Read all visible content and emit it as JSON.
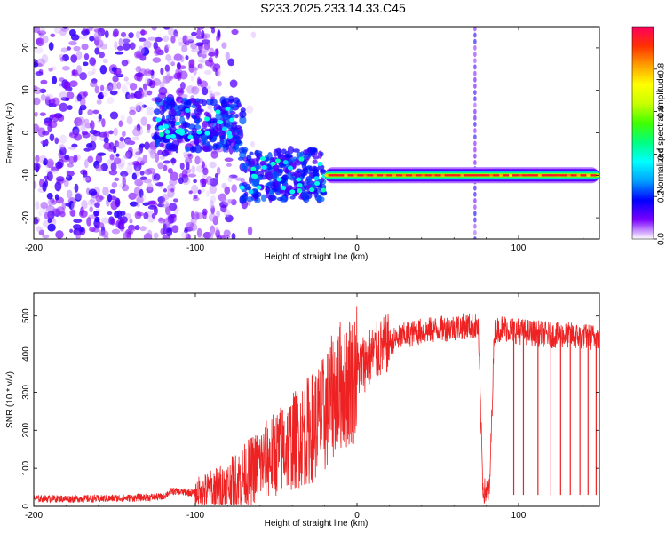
{
  "title": "S233.2025.233.14.33.C45",
  "chart_data": [
    {
      "type": "heatmap",
      "xlabel": "Height of straight line (km)",
      "ylabel": "Frequency (Hz)",
      "xlim": [
        -200,
        150
      ],
      "ylim": [
        -25,
        25
      ],
      "xticks": [
        -200,
        -100,
        0,
        100
      ],
      "yticks": [
        -20,
        -10,
        0,
        10,
        20
      ],
      "colorbar": {
        "label": "Normalized spectral amplitude",
        "range": [
          0,
          1
        ],
        "ticks": [
          "0.0",
          "0.2",
          "0.4",
          "0.6",
          "0.8"
        ],
        "colors": [
          "#ffffff",
          "#7a00ff",
          "#0000ff",
          "#00a0ff",
          "#00ffff",
          "#00ff80",
          "#40ff00",
          "#c8ff00",
          "#ffff00",
          "#ffa000",
          "#ff3000",
          "#ff0060"
        ]
      },
      "features": [
        {
          "region": "noise",
          "x": [
            -200,
            -75
          ],
          "freq_range": [
            -25,
            25
          ],
          "amplitude": 0.1
        },
        {
          "region": "signal_cluster_1",
          "x": [
            -125,
            -70
          ],
          "freq_center": 2,
          "amplitude": 0.35
        },
        {
          "region": "signal_cluster_2",
          "x": [
            -72,
            -20
          ],
          "freq_center": -10,
          "amplitude": 0.35
        },
        {
          "region": "carrier_line",
          "x": [
            -20,
            150
          ],
          "freq_center": -10,
          "amplitude": 0.95
        },
        {
          "region": "vertical_artifact",
          "x": [
            73,
            73
          ],
          "freq_range": [
            -25,
            25
          ],
          "amplitude": 0.2
        }
      ]
    },
    {
      "type": "line",
      "xlabel": "Height of straight line (km)",
      "ylabel": "SNR (10 * v/v)",
      "xlim": [
        -200,
        150
      ],
      "ylim": [
        0,
        560
      ],
      "xticks": [
        -200,
        -100,
        0,
        100
      ],
      "yticks": [
        0,
        100,
        200,
        300,
        400,
        500
      ],
      "color": "#ee2222",
      "x": [
        -200,
        -180,
        -160,
        -140,
        -120,
        -115,
        -100,
        -80,
        -70,
        -60,
        -50,
        -40,
        -30,
        -20,
        -15,
        -10,
        -5,
        0,
        10,
        20,
        30,
        40,
        50,
        60,
        70,
        75,
        78,
        82,
        85,
        90,
        100,
        110,
        120,
        130,
        140,
        150
      ],
      "values": [
        20,
        20,
        20,
        22,
        25,
        40,
        35,
        50,
        80,
        110,
        140,
        170,
        200,
        240,
        290,
        320,
        330,
        360,
        400,
        430,
        450,
        460,
        465,
        470,
        475,
        470,
        40,
        40,
        460,
        470,
        460,
        455,
        450,
        450,
        445,
        445
      ],
      "dropouts": [
        78,
        79,
        80,
        81,
        97,
        103,
        112,
        120,
        126,
        132,
        138,
        143,
        148
      ]
    }
  ]
}
